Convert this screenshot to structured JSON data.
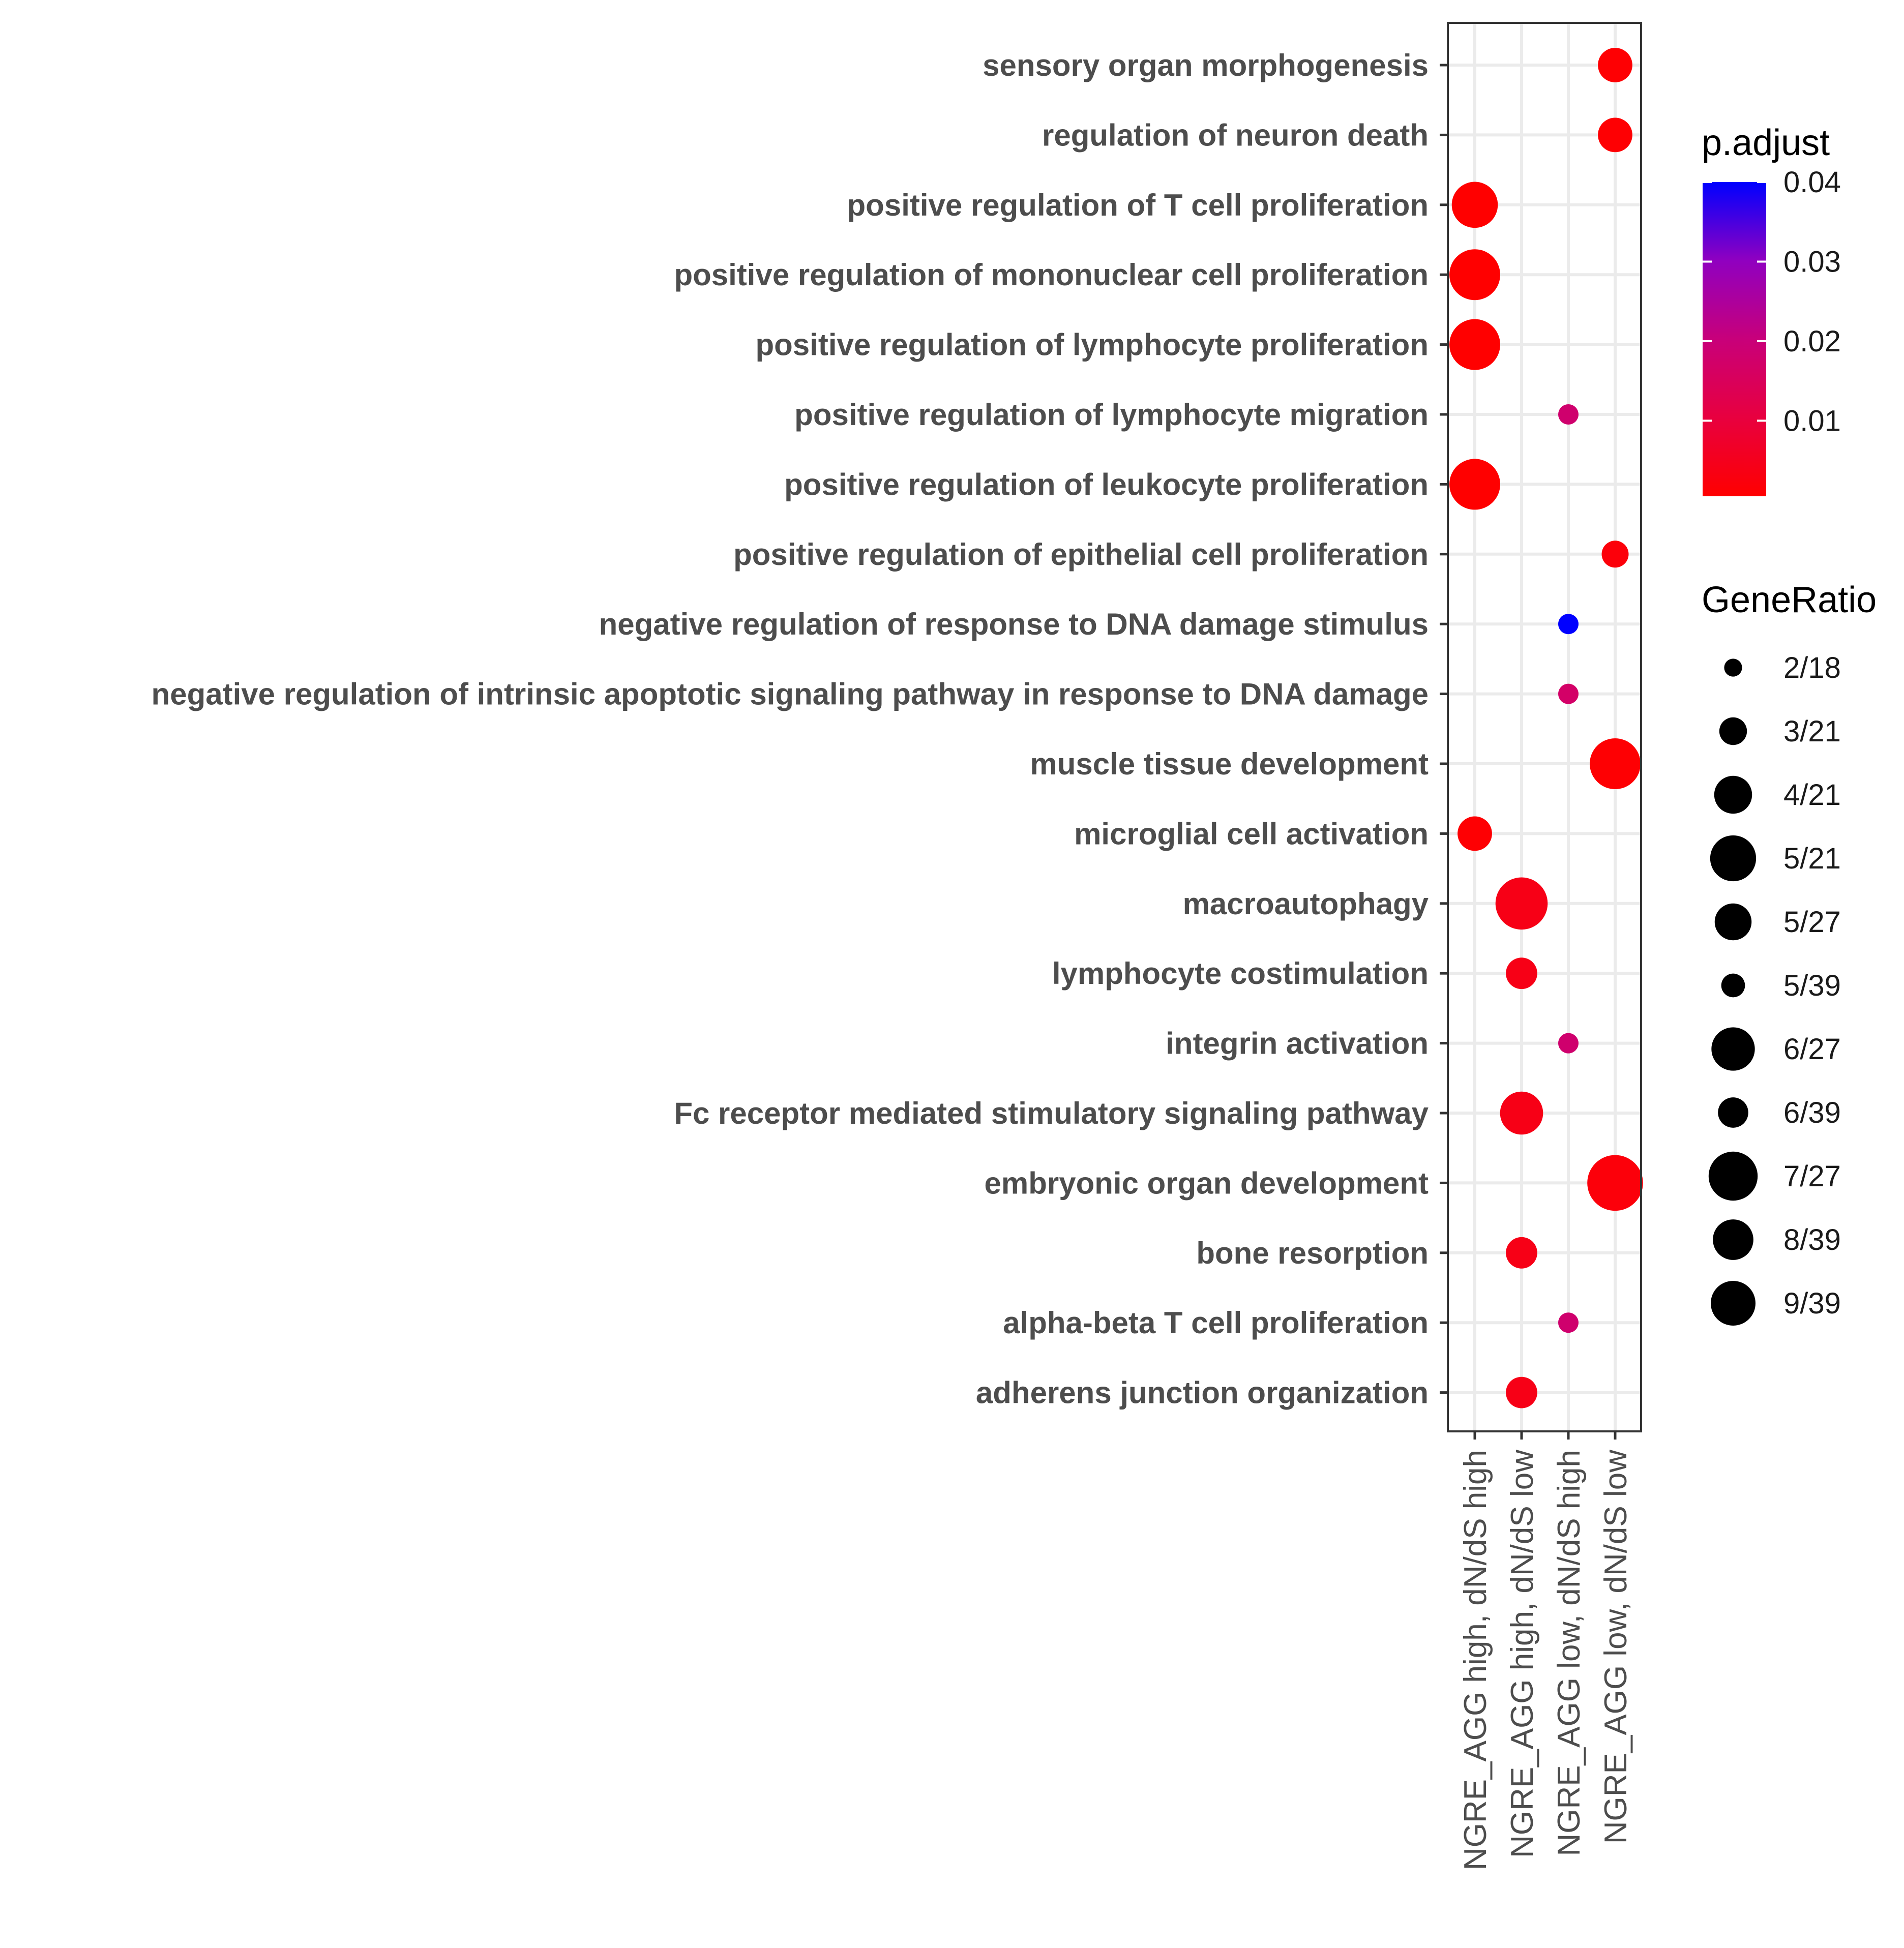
{
  "chart_data": {
    "type": "scatter",
    "title": "",
    "xlabel": "",
    "ylabel": "",
    "grid": true,
    "categories": [
      "NGRE_AGG high, dN/dS high",
      "NGRE_AGG high, dN/dS low",
      "NGRE_AGG low, dN/dS  high",
      "NGRE_AGG low, dN/dS  low"
    ],
    "terms": [
      "sensory organ morphogenesis",
      "regulation of neuron death",
      "positive regulation of T cell proliferation",
      "positive regulation of mononuclear cell proliferation",
      "positive regulation of lymphocyte proliferation",
      "positive regulation of lymphocyte migration",
      "positive regulation of leukocyte proliferation",
      "positive regulation of epithelial cell proliferation",
      "negative regulation of response to DNA damage stimulus",
      "negative regulation of intrinsic apoptotic signaling pathway in response to DNA damage",
      "muscle tissue development",
      "microglial cell activation",
      "macroautophagy",
      "lymphocyte costimulation",
      "integrin activation",
      "Fc receptor mediated stimulatory signaling pathway",
      "embryonic organ development",
      "bone resorption",
      "alpha-beta T cell proliferation",
      "adherens junction organization"
    ],
    "points": [
      {
        "term": "sensory organ morphogenesis",
        "category": "NGRE_AGG low, dN/dS  low",
        "gene_ratio": "6/39",
        "p_adjust": 0.001
      },
      {
        "term": "regulation of neuron death",
        "category": "NGRE_AGG low, dN/dS  low",
        "gene_ratio": "6/39",
        "p_adjust": 0.001
      },
      {
        "term": "positive regulation of T cell proliferation",
        "category": "NGRE_AGG high, dN/dS high",
        "gene_ratio": "8/39",
        "p_adjust": 0.0005
      },
      {
        "term": "positive regulation of mononuclear cell proliferation",
        "category": "NGRE_AGG high, dN/dS high",
        "gene_ratio": "9/39",
        "p_adjust": 0.0005
      },
      {
        "term": "positive regulation of lymphocyte proliferation",
        "category": "NGRE_AGG high, dN/dS high",
        "gene_ratio": "9/39",
        "p_adjust": 0.0005
      },
      {
        "term": "positive regulation of lymphocyte migration",
        "category": "NGRE_AGG low, dN/dS  high",
        "gene_ratio": "2/18",
        "p_adjust": 0.018
      },
      {
        "term": "positive regulation of leukocyte proliferation",
        "category": "NGRE_AGG high, dN/dS high",
        "gene_ratio": "9/39",
        "p_adjust": 0.0005
      },
      {
        "term": "positive regulation of epithelial cell proliferation",
        "category": "NGRE_AGG low, dN/dS  low",
        "gene_ratio": "5/39",
        "p_adjust": 0.002
      },
      {
        "term": "negative regulation of response to DNA damage stimulus",
        "category": "NGRE_AGG low, dN/dS  high",
        "gene_ratio": "2/18",
        "p_adjust": 0.04
      },
      {
        "term": "negative regulation of intrinsic apoptotic signaling pathway in response to DNA damage",
        "category": "NGRE_AGG low, dN/dS  high",
        "gene_ratio": "2/18",
        "p_adjust": 0.017
      },
      {
        "term": "muscle tissue development",
        "category": "NGRE_AGG low, dN/dS  low",
        "gene_ratio": "9/39",
        "p_adjust": 0.001
      },
      {
        "term": "microglial cell activation",
        "category": "NGRE_AGG high, dN/dS high",
        "gene_ratio": "6/39",
        "p_adjust": 0.001
      },
      {
        "term": "macroautophagy",
        "category": "NGRE_AGG high, dN/dS low",
        "gene_ratio": "5/21",
        "p_adjust": 0.004
      },
      {
        "term": "lymphocyte costimulation",
        "category": "NGRE_AGG high, dN/dS low",
        "gene_ratio": "3/21",
        "p_adjust": 0.004
      },
      {
        "term": "integrin activation",
        "category": "NGRE_AGG low, dN/dS  high",
        "gene_ratio": "2/18",
        "p_adjust": 0.018
      },
      {
        "term": "Fc receptor mediated stimulatory signaling pathway",
        "category": "NGRE_AGG high, dN/dS low",
        "gene_ratio": "4/21",
        "p_adjust": 0.004
      },
      {
        "term": "embryonic organ development",
        "category": "NGRE_AGG low, dN/dS  low",
        "gene_ratio": "7/27",
        "p_adjust": 0.002
      },
      {
        "term": "bone resorption",
        "category": "NGRE_AGG high, dN/dS low",
        "gene_ratio": "3/21",
        "p_adjust": 0.004
      },
      {
        "term": "alpha-beta T cell proliferation",
        "category": "NGRE_AGG low, dN/dS  high",
        "gene_ratio": "2/18",
        "p_adjust": 0.018
      },
      {
        "term": "adherens junction organization",
        "category": "NGRE_AGG high, dN/dS low",
        "gene_ratio": "3/21",
        "p_adjust": 0.004
      }
    ],
    "color_legend": {
      "title": "p.adjust",
      "ticks": [
        0.04,
        0.03,
        0.02,
        0.01
      ],
      "tick_labels": [
        "0.04",
        "0.03",
        "0.02",
        "0.01"
      ],
      "range": [
        0.0005,
        0.04
      ],
      "low_color": "#ff0000",
      "high_color": "#0000ff"
    },
    "size_legend": {
      "title": "GeneRatio",
      "labels": [
        "2/18",
        "3/21",
        "4/21",
        "5/21",
        "5/27",
        "5/39",
        "6/27",
        "6/39",
        "7/27",
        "8/39",
        "9/39"
      ]
    }
  }
}
